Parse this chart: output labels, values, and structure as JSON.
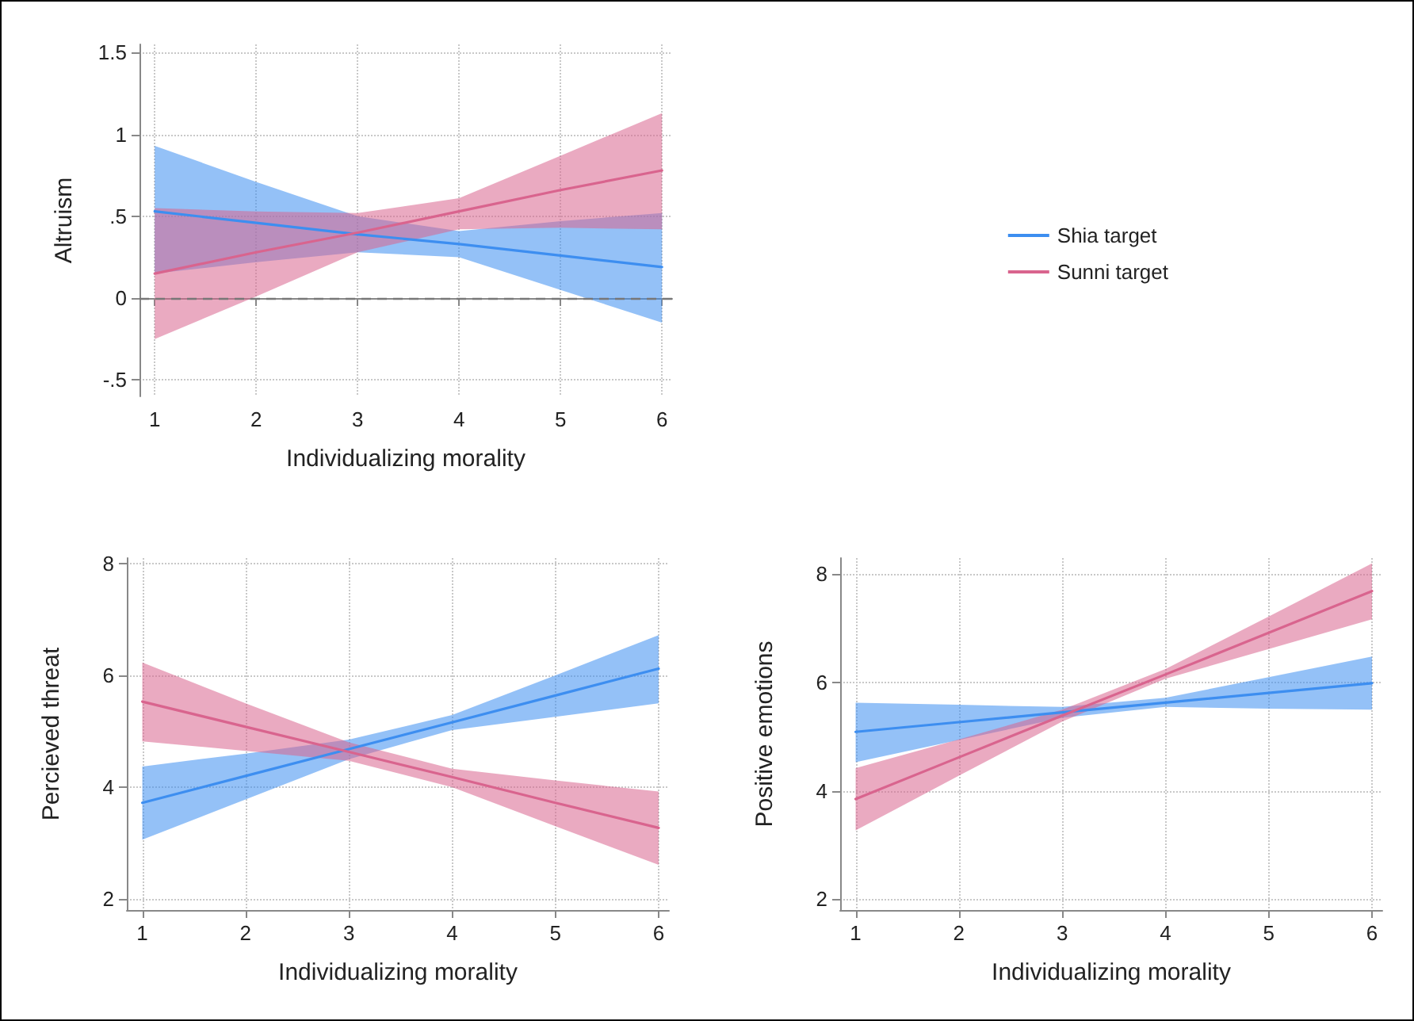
{
  "chart_data": [
    {
      "type": "line",
      "xlabel": "Individualizing morality",
      "ylabel": "Altruism",
      "xlim": [
        0.85,
        6.1
      ],
      "xticks": [
        1,
        2,
        3,
        4,
        5,
        6
      ],
      "ylim": [
        -0.6,
        1.55
      ],
      "yticks": [
        {
          "value": -0.5,
          "label": "-.5"
        },
        0,
        {
          "value": 0.5,
          "label": ".5"
        },
        1,
        1.5
      ],
      "grid": true,
      "legend": "right",
      "line_style": "solid",
      "ref_lines": [
        {
          "axis": "y",
          "value": 0,
          "line_style": "dashed",
          "color": "#777777"
        }
      ],
      "series": [
        {
          "name": "Shia target",
          "color": "#3d8ef0",
          "x": [
            1,
            2,
            3,
            4,
            5,
            6
          ],
          "values": [
            0.53,
            0.46,
            0.39,
            0.33,
            0.26,
            0.19
          ],
          "lower": [
            0.15,
            0.22,
            0.28,
            0.25,
            0.05,
            -0.15
          ],
          "upper": [
            0.93,
            0.71,
            0.5,
            0.41,
            0.47,
            0.52
          ]
        },
        {
          "name": "Sunni target",
          "color": "#d9648e",
          "x": [
            1,
            2,
            3,
            4,
            5,
            6
          ],
          "values": [
            0.15,
            0.28,
            0.4,
            0.53,
            0.66,
            0.78
          ],
          "lower": [
            -0.25,
            0.01,
            0.28,
            0.42,
            0.43,
            0.42
          ],
          "upper": [
            0.55,
            0.53,
            0.52,
            0.61,
            0.87,
            1.13
          ]
        }
      ]
    },
    {
      "type": "line",
      "xlabel": "Individualizing morality",
      "ylabel": "Percieved threat",
      "xlim": [
        0.85,
        6.1
      ],
      "xticks": [
        1,
        2,
        3,
        4,
        5,
        6
      ],
      "ylim": [
        1.8,
        8.1
      ],
      "yticks": [
        2,
        4,
        6,
        8
      ],
      "grid": true,
      "line_style": "solid",
      "series": [
        {
          "color": "#3d8ef0",
          "x": [
            1,
            2,
            3,
            4,
            5,
            6
          ],
          "values": [
            3.72,
            4.2,
            4.68,
            5.16,
            5.64,
            6.12
          ],
          "lower": [
            3.06,
            3.78,
            4.5,
            5.02,
            5.26,
            5.5
          ],
          "upper": [
            4.37,
            4.6,
            4.85,
            5.29,
            6.0,
            6.72
          ]
        },
        {
          "color": "#d9648e",
          "x": [
            1,
            2,
            3,
            4,
            5,
            6
          ],
          "values": [
            5.53,
            5.08,
            4.63,
            4.18,
            3.72,
            3.27
          ],
          "lower": [
            4.82,
            4.65,
            4.47,
            4.0,
            3.3,
            2.61
          ],
          "upper": [
            6.23,
            5.5,
            4.8,
            4.33,
            4.12,
            3.92
          ]
        }
      ]
    },
    {
      "type": "line",
      "xlabel": "Individualizing morality",
      "ylabel": "Positive emotions",
      "xlim": [
        0.85,
        6.1
      ],
      "xticks": [
        1,
        2,
        3,
        4,
        5,
        6
      ],
      "ylim": [
        1.8,
        8.3
      ],
      "yticks": [
        2,
        4,
        6,
        8
      ],
      "grid": true,
      "line_style": "solid",
      "series": [
        {
          "color": "#3d8ef0",
          "x": [
            1,
            2,
            3,
            4,
            5,
            6
          ],
          "values": [
            5.09,
            5.27,
            5.45,
            5.63,
            5.81,
            5.99
          ],
          "lower": [
            4.53,
            4.94,
            5.35,
            5.55,
            5.52,
            5.5
          ],
          "upper": [
            5.63,
            5.59,
            5.55,
            5.72,
            6.1,
            6.48
          ]
        },
        {
          "color": "#d9648e",
          "x": [
            1,
            2,
            3,
            4,
            5,
            6
          ],
          "values": [
            3.85,
            4.62,
            5.39,
            6.15,
            6.92,
            7.69
          ],
          "lower": [
            3.27,
            4.28,
            5.28,
            6.07,
            6.62,
            7.17
          ],
          "upper": [
            4.42,
            4.95,
            5.5,
            6.25,
            7.22,
            8.2
          ]
        }
      ]
    }
  ]
}
